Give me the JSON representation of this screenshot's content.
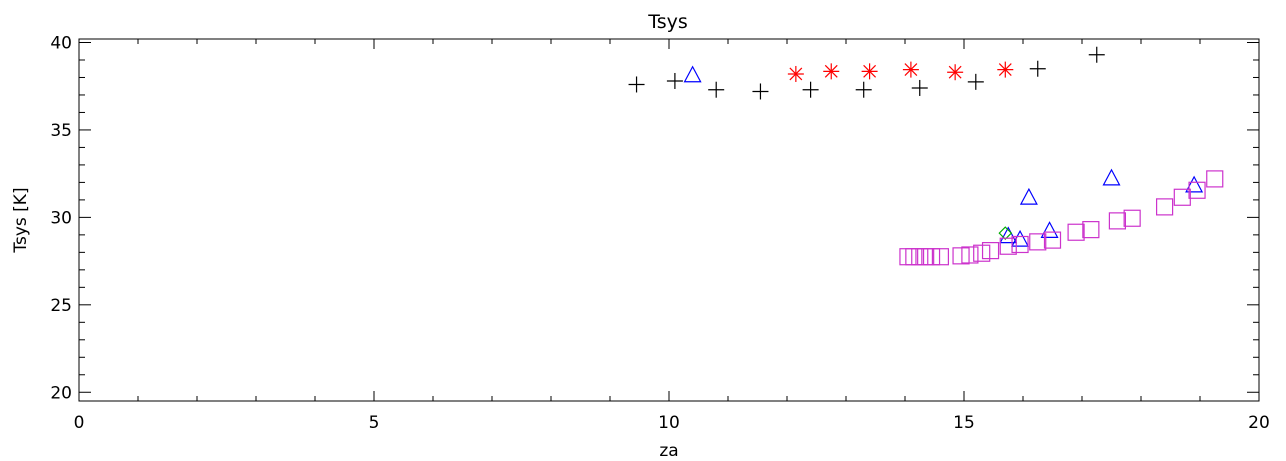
{
  "chart_data": {
    "type": "scatter",
    "title": "Tsys",
    "xlabel": "za",
    "ylabel": "Tsys [K]",
    "xlim": [
      0,
      20
    ],
    "ylim": [
      19.5,
      40.2
    ],
    "x_ticks": [
      0,
      5,
      10,
      15,
      20
    ],
    "y_ticks": [
      20,
      25,
      30,
      35,
      40
    ],
    "x_tick_labels": [
      "0",
      "5",
      "10",
      "15",
      "20"
    ],
    "y_tick_labels": [
      "20",
      "25",
      "30",
      "35",
      "40"
    ],
    "grid": false,
    "series": [
      {
        "marker": "plus",
        "color": "#000000",
        "points": [
          [
            9.45,
            37.6
          ],
          [
            10.1,
            37.8
          ],
          [
            10.8,
            37.3
          ],
          [
            11.55,
            37.2
          ],
          [
            12.4,
            37.3
          ],
          [
            13.3,
            37.3
          ],
          [
            14.25,
            37.4
          ],
          [
            15.2,
            37.75
          ],
          [
            16.25,
            38.5
          ],
          [
            17.25,
            39.3
          ]
        ]
      },
      {
        "marker": "asterisk",
        "color": "#ff0000",
        "points": [
          [
            12.15,
            38.2
          ],
          [
            12.75,
            38.35
          ],
          [
            13.4,
            38.35
          ],
          [
            14.1,
            38.45
          ],
          [
            14.85,
            38.3
          ],
          [
            15.7,
            38.45
          ]
        ]
      },
      {
        "marker": "triangle",
        "color": "#0000ff",
        "points": [
          [
            10.4,
            38.1
          ],
          [
            15.75,
            28.9
          ],
          [
            15.95,
            28.7
          ],
          [
            16.1,
            31.1
          ],
          [
            16.45,
            29.2
          ],
          [
            17.5,
            32.2
          ],
          [
            18.9,
            31.8
          ]
        ]
      },
      {
        "marker": "diamond",
        "color": "#00aa00",
        "points": [
          [
            15.7,
            29.1
          ]
        ]
      },
      {
        "marker": "square",
        "color": "#cc33cc",
        "points": [
          [
            14.05,
            27.75
          ],
          [
            14.15,
            27.75
          ],
          [
            14.25,
            27.75
          ],
          [
            14.35,
            27.75
          ],
          [
            14.45,
            27.75
          ],
          [
            14.6,
            27.75
          ],
          [
            14.95,
            27.8
          ],
          [
            15.1,
            27.85
          ],
          [
            15.3,
            27.95
          ],
          [
            15.45,
            28.1
          ],
          [
            15.75,
            28.35
          ],
          [
            15.95,
            28.45
          ],
          [
            16.25,
            28.6
          ],
          [
            16.5,
            28.7
          ],
          [
            16.9,
            29.15
          ],
          [
            17.15,
            29.3
          ],
          [
            17.6,
            29.8
          ],
          [
            17.85,
            29.95
          ],
          [
            18.4,
            30.6
          ],
          [
            18.7,
            31.15
          ],
          [
            18.95,
            31.55
          ],
          [
            19.25,
            32.2
          ]
        ]
      }
    ]
  }
}
